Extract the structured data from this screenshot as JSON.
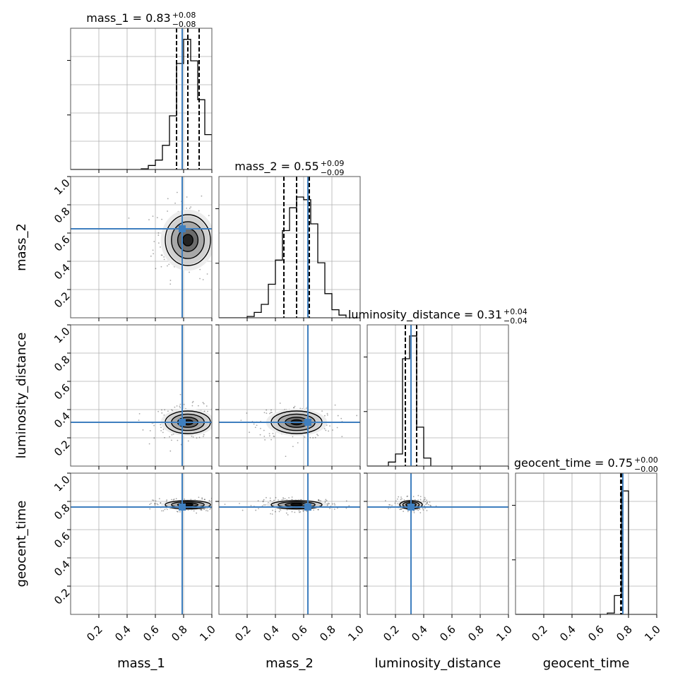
{
  "params": [
    "mass_1",
    "mass_2",
    "luminosity_distance",
    "geocent_time"
  ],
  "colors": {
    "truth": "#3f7fbf",
    "hist": "#000000",
    "grid": "#b0b0b0",
    "axes": "#000000",
    "background": "#ffffff"
  },
  "chart_data": {
    "type": "corner",
    "axis_range": [
      0,
      1
    ],
    "tick_labels": [
      "0.2",
      "0.4",
      "0.6",
      "0.8",
      "1.0"
    ],
    "tick_values": [
      0.2,
      0.4,
      0.6,
      0.8,
      1.0
    ],
    "grid": true,
    "xlabels": [
      "mass_1",
      "mass_2",
      "luminosity_distance",
      "geocent_time"
    ],
    "ylabels": [
      "mass_2",
      "luminosity_distance",
      "geocent_time"
    ],
    "titles": [
      {
        "label": "mass_1",
        "median": "0.83",
        "plus": "+0.08",
        "minus": "−0.08"
      },
      {
        "label": "mass_2",
        "median": "0.55",
        "plus": "+0.09",
        "minus": "−0.09"
      },
      {
        "label": "luminosity_distance",
        "median": "0.31",
        "plus": "+0.04",
        "minus": "−0.04"
      },
      {
        "label": "geocent_time",
        "median": "0.75",
        "plus": "+0.00",
        "minus": "−0.00"
      }
    ],
    "truths": [
      0.79,
      0.63,
      0.31,
      0.76
    ],
    "quantiles": [
      [
        0.75,
        0.83,
        0.91
      ],
      [
        0.46,
        0.55,
        0.64
      ],
      [
        0.27,
        0.31,
        0.35
      ],
      [
        0.745,
        0.75,
        0.755
      ]
    ],
    "histograms": [
      {
        "edges": [
          0.5,
          0.55,
          0.6,
          0.65,
          0.7,
          0.75,
          0.8,
          0.85,
          0.9,
          0.95,
          1.0
        ],
        "counts": [
          0.005,
          0.03,
          0.07,
          0.18,
          0.4,
          0.79,
          0.97,
          0.81,
          0.52,
          0.26
        ]
      },
      {
        "edges": [
          0.2,
          0.25,
          0.3,
          0.35,
          0.4,
          0.45,
          0.5,
          0.55,
          0.6,
          0.65,
          0.7,
          0.75,
          0.8,
          0.85,
          0.9
        ],
        "counts": [
          0.01,
          0.04,
          0.1,
          0.25,
          0.43,
          0.65,
          0.82,
          0.9,
          0.88,
          0.7,
          0.41,
          0.18,
          0.06,
          0.02
        ]
      },
      {
        "edges": [
          0.15,
          0.2,
          0.25,
          0.3,
          0.35,
          0.4,
          0.45
        ],
        "counts": [
          0.03,
          0.09,
          0.8,
          0.97,
          0.29,
          0.06
        ]
      },
      {
        "edges": [
          0.65,
          0.7,
          0.75,
          0.8
        ],
        "counts": [
          0.01,
          0.14,
          0.92
        ]
      }
    ],
    "blobs": [
      {
        "x": 0.83,
        "y": 0.55,
        "sx": 0.08,
        "sy": 0.09
      },
      {
        "x": 0.83,
        "y": 0.31,
        "sx": 0.08,
        "sy": 0.04
      },
      {
        "x": 0.55,
        "y": 0.31,
        "sx": 0.09,
        "sy": 0.04
      },
      {
        "x": 0.83,
        "y": 0.776,
        "sx": 0.08,
        "sy": 0.015
      },
      {
        "x": 0.55,
        "y": 0.776,
        "sx": 0.09,
        "sy": 0.015
      },
      {
        "x": 0.31,
        "y": 0.776,
        "sx": 0.04,
        "sy": 0.015
      }
    ]
  }
}
